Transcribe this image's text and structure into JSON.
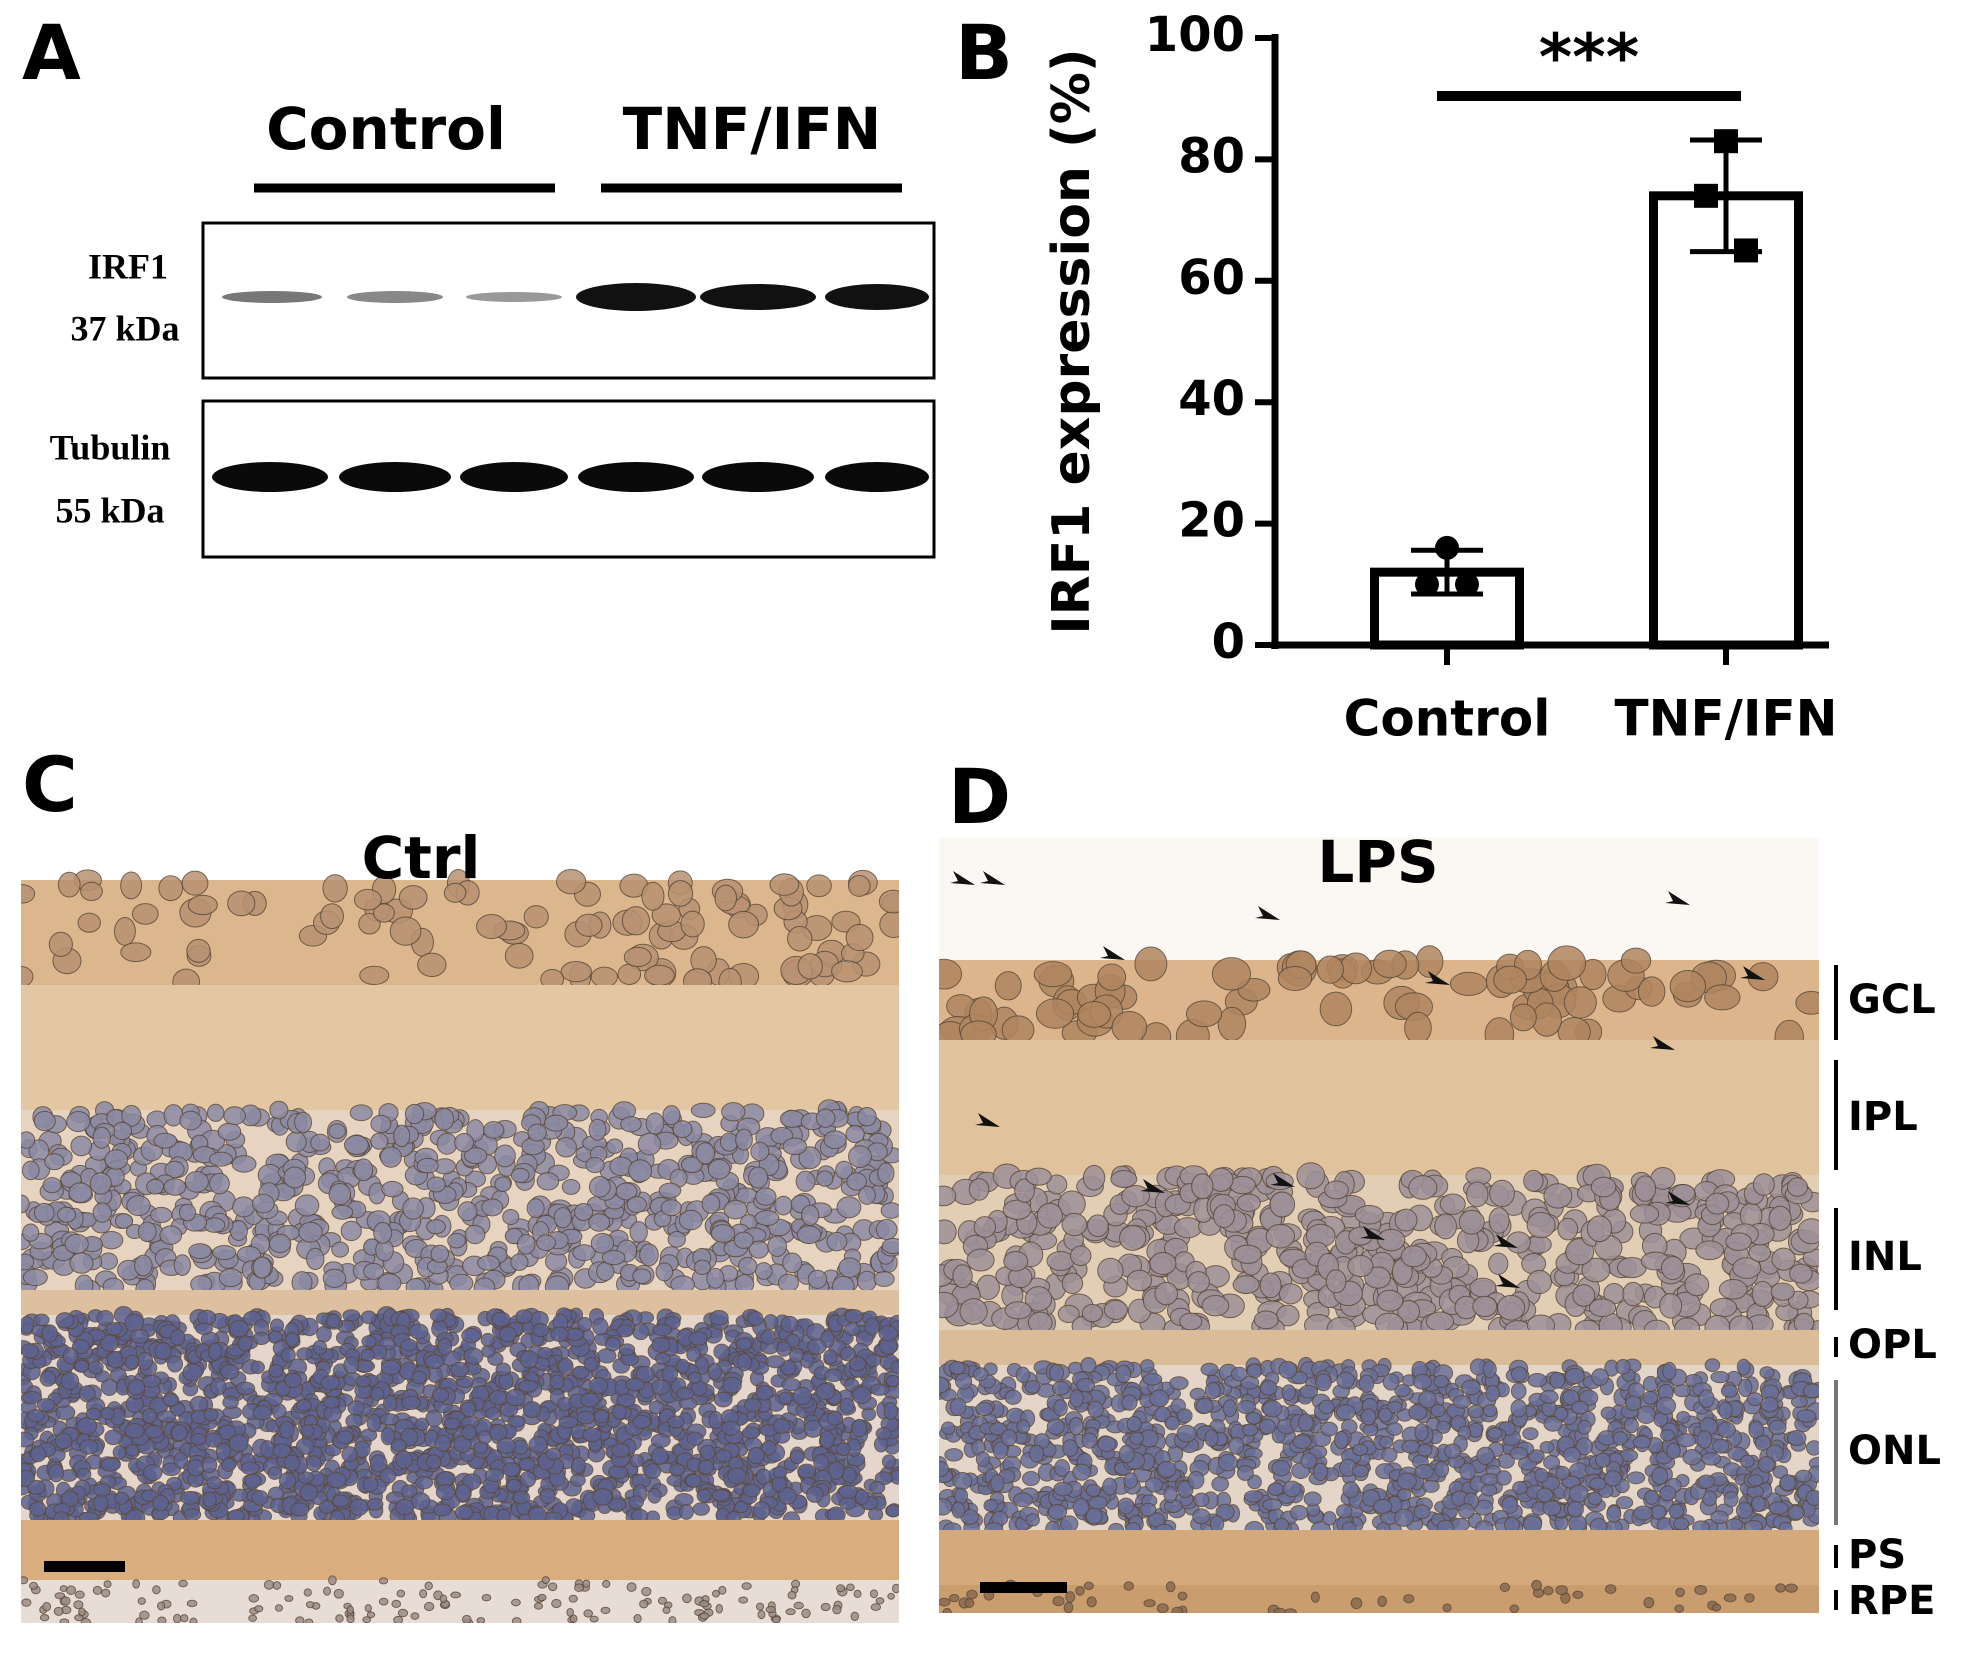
{
  "panel_labels": [
    "A",
    "B",
    "C",
    "D"
  ],
  "blot": {
    "groups": [
      "Control",
      "TNF/IFN"
    ],
    "rows": [
      {
        "name": "IRF1",
        "size": "37 kDa"
      },
      {
        "name": "Tubulin",
        "size": "55 kDa"
      }
    ]
  },
  "chart_data": {
    "type": "bar",
    "ylabel": "IRF1 expression (%)",
    "categories": [
      "Control",
      "TNF/IFN"
    ],
    "values": [
      12,
      74
    ],
    "errors": [
      3.6,
      9.2
    ],
    "points": [
      [
        16,
        10,
        10
      ],
      [
        83,
        74,
        65
      ]
    ],
    "markers": [
      "circle",
      "square"
    ],
    "color": "#ffffff",
    "edge_color": "#000000",
    "ylim": [
      0,
      100
    ],
    "yticks": [
      0,
      20,
      40,
      60,
      80,
      100
    ],
    "annotation": "***"
  },
  "histology": [
    {
      "title": "Ctrl"
    },
    {
      "title": "LPS",
      "layers": [
        "GCL",
        "IPL",
        "INL",
        "OPL",
        "ONL",
        "PS",
        "RPE"
      ]
    }
  ]
}
